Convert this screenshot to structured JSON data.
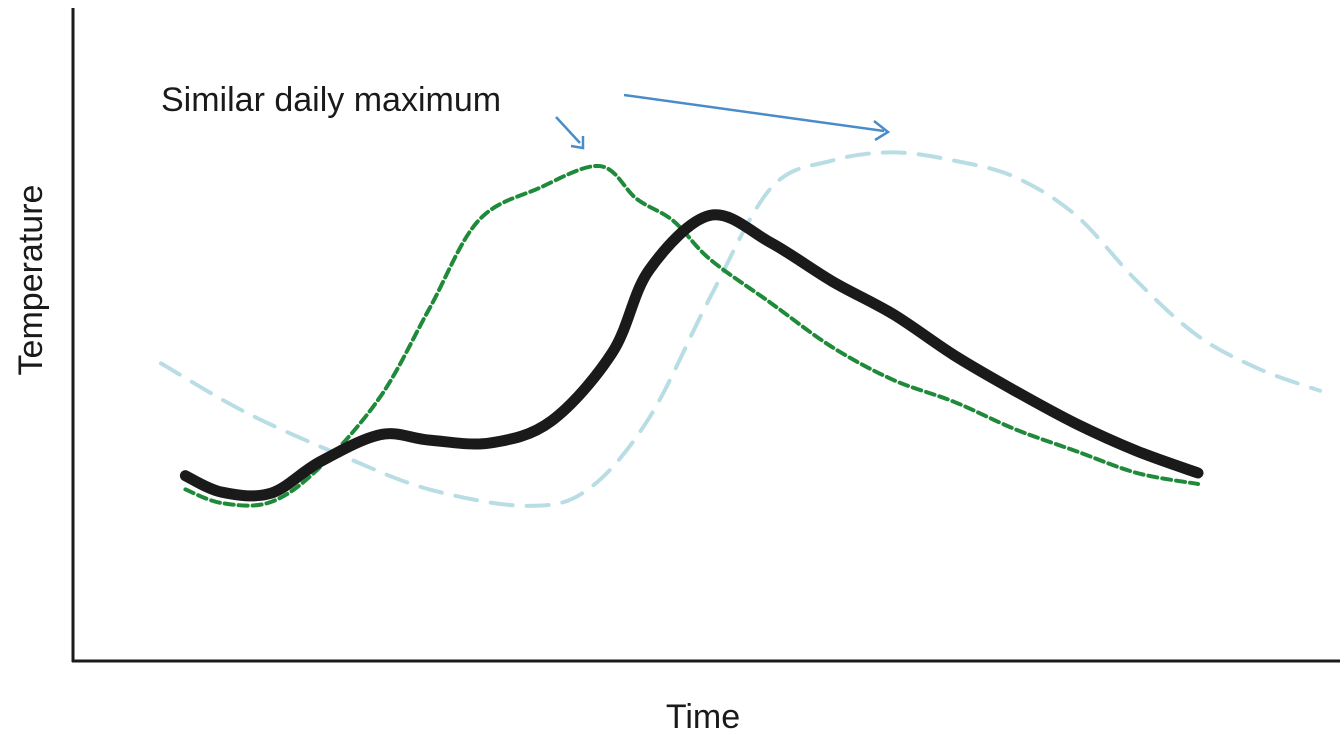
{
  "chart_data": {
    "type": "line",
    "xlabel": "Time",
    "ylabel": "Temperature",
    "xlim": [
      0,
      100
    ],
    "ylim": [
      0,
      100
    ],
    "grid": false,
    "legend": "none",
    "annotation": {
      "text": "Similar daily maximum",
      "color": "#4a8cc9"
    },
    "series": [
      {
        "style": "dashed",
        "color": "#b9dde4",
        "x": [
          5,
          12,
          20,
          27,
          35,
          40,
          45,
          50,
          55,
          60,
          65,
          70,
          75,
          80,
          85,
          90,
          95,
          100
        ],
        "y": [
          45,
          36,
          28,
          22,
          19,
          22,
          35,
          57,
          77,
          82,
          83.5,
          82,
          79,
          72,
          60,
          50,
          44,
          40
        ]
      },
      {
        "style": "dashed",
        "color": "#1f8a3a",
        "x": [
          7,
          10,
          14,
          18,
          23,
          27,
          31,
          36,
          41,
          44,
          47,
          50,
          55,
          60,
          65,
          70,
          75,
          80,
          85,
          90
        ],
        "y": [
          22,
          19.5,
          19.7,
          26,
          39,
          55,
          71,
          77,
          81,
          75,
          71,
          64,
          56,
          48,
          42,
          38,
          33,
          29,
          25,
          23
        ]
      },
      {
        "style": "solid",
        "color": "#1a1a1a",
        "x": [
          7,
          10,
          14,
          18,
          23,
          27,
          32,
          37,
          42,
          45,
          50,
          55,
          60,
          65,
          70,
          75,
          80,
          85,
          90
        ],
        "y": [
          24.5,
          21.5,
          21.3,
          27,
          32,
          31,
          30.5,
          34.5,
          47,
          62,
          72,
          67,
          60,
          54,
          46.5,
          40,
          34,
          29,
          25
        ]
      }
    ]
  }
}
